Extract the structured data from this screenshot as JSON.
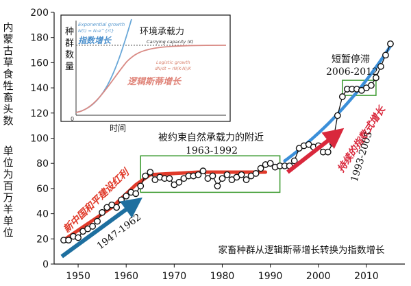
{
  "chart_data": {
    "type": "scatter",
    "title": "",
    "xlabel": "",
    "ylabel": "内蒙古草食牲畜头数 单位为百万羊单位",
    "ylabel_top": "内蒙古草食牲畜头数",
    "ylabel_unit": "单位为百万羊单位",
    "xlim": [
      1945,
      2018
    ],
    "ylim": [
      0,
      200
    ],
    "x_ticks": [
      1950,
      1960,
      1970,
      1980,
      1990,
      2000,
      2010
    ],
    "y_ticks": [
      0,
      20,
      40,
      60,
      80,
      100,
      120,
      140,
      160,
      180,
      200
    ],
    "grid": false,
    "series": [
      {
        "points": [
          [
            1947,
            19
          ],
          [
            1948,
            19
          ],
          [
            1949,
            22
          ],
          [
            1950,
            21
          ],
          [
            1951,
            26
          ],
          [
            1952,
            28
          ],
          [
            1953,
            30
          ],
          [
            1954,
            34
          ],
          [
            1955,
            41
          ],
          [
            1956,
            45
          ],
          [
            1957,
            47
          ],
          [
            1958,
            45
          ],
          [
            1959,
            51
          ],
          [
            1960,
            54
          ],
          [
            1961,
            57
          ],
          [
            1962,
            56
          ],
          [
            1963,
            62
          ],
          [
            1964,
            70
          ],
          [
            1965,
            73
          ],
          [
            1966,
            67
          ],
          [
            1967,
            69
          ],
          [
            1968,
            68
          ],
          [
            1969,
            68
          ],
          [
            1970,
            63
          ],
          [
            1971,
            65
          ],
          [
            1972,
            68
          ],
          [
            1973,
            70
          ],
          [
            1974,
            70
          ],
          [
            1975,
            71
          ],
          [
            1976,
            74
          ],
          [
            1977,
            68
          ],
          [
            1978,
            70
          ],
          [
            1979,
            62
          ],
          [
            1980,
            68
          ],
          [
            1981,
            71
          ],
          [
            1982,
            67
          ],
          [
            1983,
            69
          ],
          [
            1984,
            71
          ],
          [
            1985,
            67
          ],
          [
            1986,
            70
          ],
          [
            1987,
            72
          ],
          [
            1988,
            76
          ],
          [
            1989,
            79
          ],
          [
            1990,
            80
          ],
          [
            1991,
            77
          ],
          [
            1992,
            78
          ],
          [
            1993,
            78
          ],
          [
            1994,
            78
          ],
          [
            1995,
            82
          ],
          [
            1996,
            92
          ],
          [
            1997,
            94
          ],
          [
            1998,
            95
          ],
          [
            1999,
            93
          ],
          [
            2000,
            94
          ],
          [
            2001,
            89
          ],
          [
            2002,
            89
          ],
          [
            2003,
            96
          ],
          [
            2004,
            118
          ],
          [
            2005,
            133
          ],
          [
            2006,
            139
          ],
          [
            2007,
            139
          ],
          [
            2008,
            139
          ],
          [
            2009,
            138
          ],
          [
            2010,
            140
          ],
          [
            2011,
            142
          ],
          [
            2012,
            148
          ],
          [
            2013,
            157
          ],
          [
            2014,
            166
          ],
          [
            2015,
            175
          ]
        ]
      }
    ],
    "trend_lines": [
      {
        "type": "linear growth",
        "color": "#e03a2a"
      },
      {
        "type": "exponential growth",
        "color": "#3b8fd9"
      }
    ],
    "boxes": [
      {
        "x": [
          1963,
          1992
        ],
        "y": [
          57,
          86
        ],
        "color": "#3a9a2e"
      },
      {
        "x": [
          2005,
          2012
        ],
        "y": [
          134,
          146
        ],
        "color": "#3a9a2e"
      }
    ],
    "annotations": {
      "box1_title": "被约束自然承载力的附近",
      "box1_years": "1963-1992",
      "box2_title": "短暂停滞",
      "box2_years": "2006-2012",
      "red_line": "新中国和平建设红利",
      "blue_period1": "1947-1962",
      "blue_period2": "1993-2005",
      "exp_label": "持续的指数式增长",
      "bottom_caption": "家畜种群从逻辑斯蒂增长转换为指数增长"
    },
    "inset": {
      "ylabel": "种群数量",
      "xlabel": "时间",
      "exp_title": "Exponential growth",
      "exp_formula": "N(t) = N₀e^{rt}",
      "exp_label_cn": "指数增长",
      "carrying_label_cn": "环境承载力",
      "carrying_label_en": "Carrying capacity (K)",
      "log_title": "Logistic growth",
      "log_formula": "dN/dt = rN(K-N)/K",
      "log_label_cn": "逻辑斯蒂增长"
    },
    "colors": {
      "points_fill": "#ffffff",
      "points_stroke": "#111111",
      "red": "#e03a2a",
      "blue": "#3b8fd9",
      "dark_blue": "#1e6f9f",
      "green": "#3a9a2e",
      "crimson": "#d9283c",
      "inset_exp": "#6aa8d8",
      "inset_log": "#d98a84"
    }
  }
}
